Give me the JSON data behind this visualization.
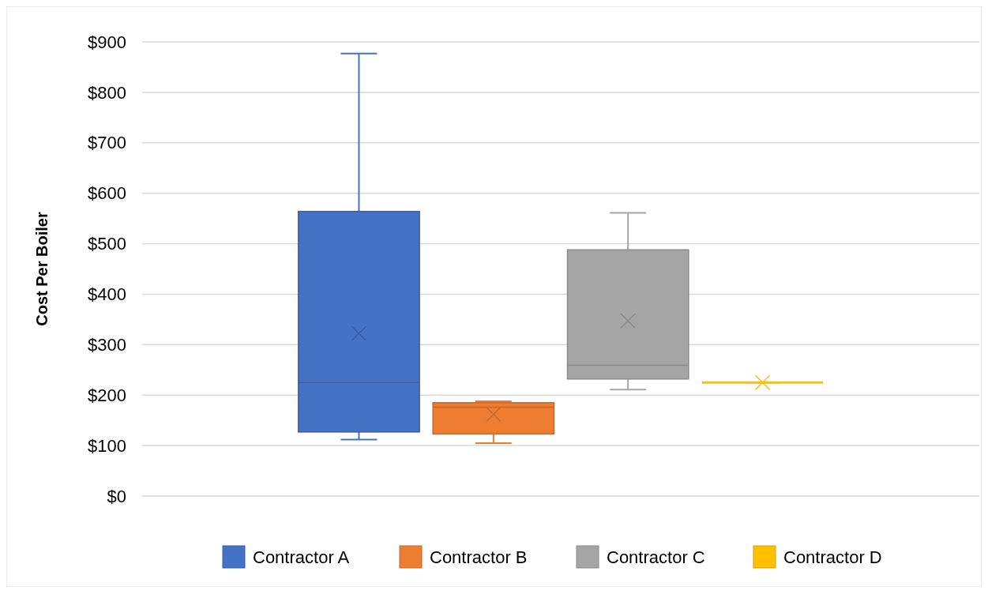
{
  "chart_data": {
    "type": "box",
    "ylabel": "Cost Per Boiler",
    "categories": [
      null
    ],
    "ylim": [
      0,
      900
    ],
    "yticks": [
      {
        "value": 0,
        "label": "$0"
      },
      {
        "value": 100,
        "label": "$100"
      },
      {
        "value": 200,
        "label": "$200"
      },
      {
        "value": 300,
        "label": "$300"
      },
      {
        "value": 400,
        "label": "$400"
      },
      {
        "value": 500,
        "label": "$500"
      },
      {
        "value": 600,
        "label": "$600"
      },
      {
        "value": 700,
        "label": "$700"
      },
      {
        "value": 800,
        "label": "$800"
      },
      {
        "value": 900,
        "label": "$900"
      }
    ],
    "grid": "y",
    "legend": "bottom",
    "marker": "cross",
    "series": [
      {
        "name": "Contractor A",
        "color": "#4472c4",
        "boxes": [
          {
            "low": 112,
            "q1": 127,
            "median": 225,
            "q3": 564,
            "high": 877,
            "mean": 322
          }
        ]
      },
      {
        "name": "Contractor B",
        "color": "#ed7d31",
        "boxes": [
          {
            "low": 105,
            "q1": 123,
            "median": 176,
            "q3": 185,
            "high": 188,
            "mean": 162
          }
        ]
      },
      {
        "name": "Contractor C",
        "color": "#a5a5a5",
        "boxes": [
          {
            "low": 211,
            "q1": 232,
            "median": 259,
            "q3": 488,
            "high": 561,
            "mean": 347
          }
        ]
      },
      {
        "name": "Contractor D",
        "color": "#ffc000",
        "boxes": [
          {
            "low": 225,
            "q1": 225,
            "median": 225,
            "q3": 225,
            "high": 225,
            "mean": 225
          }
        ]
      }
    ]
  }
}
